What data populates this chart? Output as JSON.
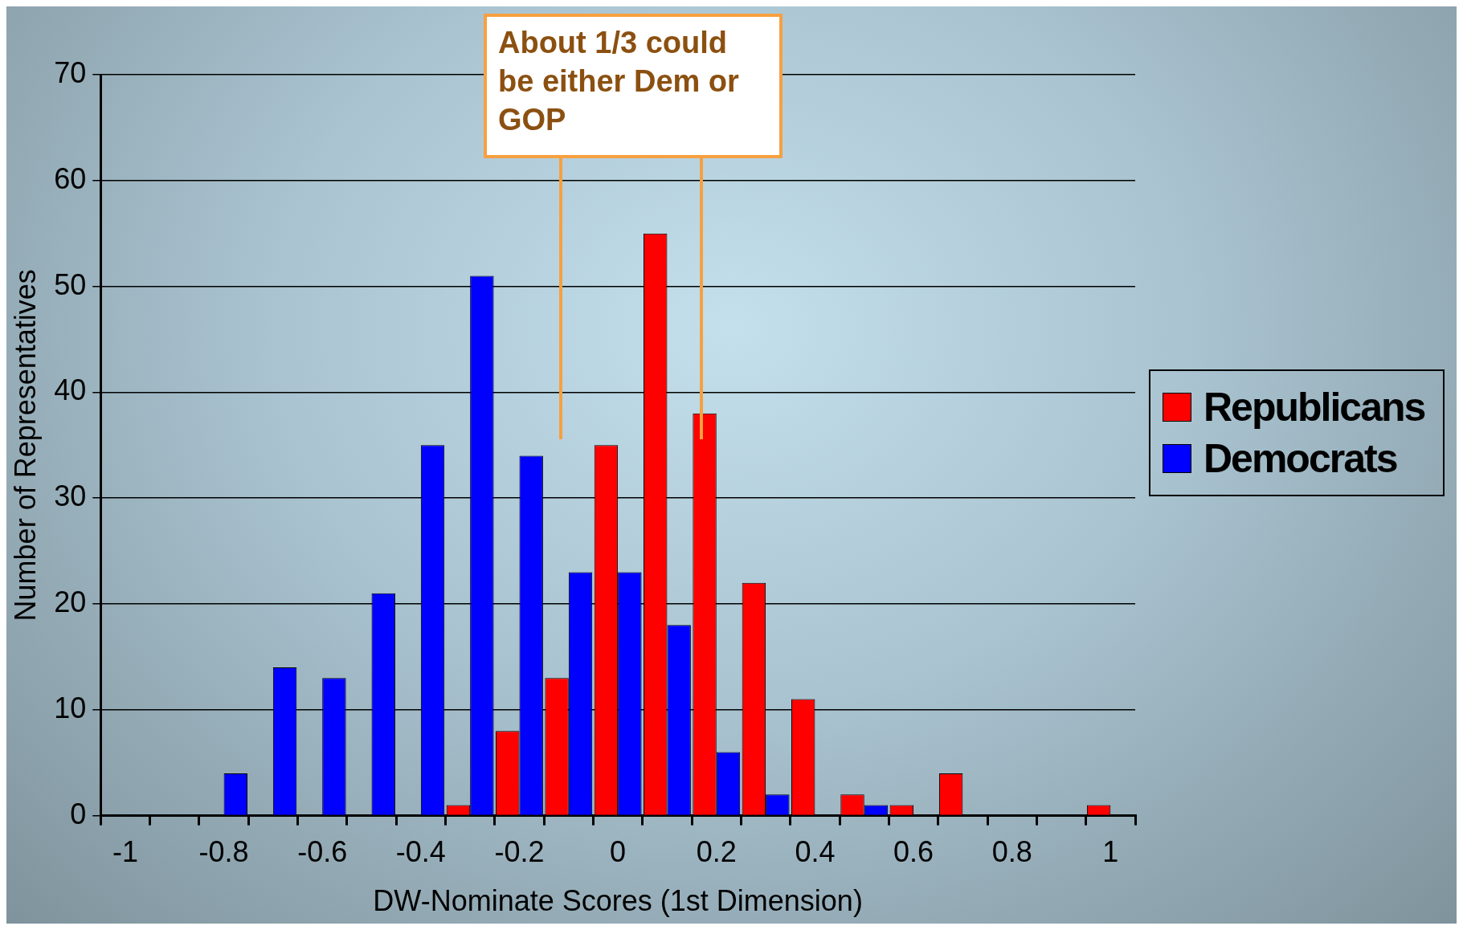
{
  "chart_data": {
    "type": "bar",
    "xlabel": "DW-Nominate Scores (1st Dimension)",
    "ylabel": "Number of Representatives",
    "categories": [
      "-1",
      null,
      "-0.8",
      null,
      "-0.6",
      null,
      "-0.4",
      null,
      "-0.2",
      null,
      "0",
      null,
      "0.2",
      null,
      "0.4",
      null,
      "0.6",
      null,
      "0.8",
      null,
      "1"
    ],
    "series": [
      {
        "name": "Republicans",
        "color": "#ff0000",
        "values": [
          0,
          0,
          0,
          0,
          0,
          0,
          0,
          1,
          8,
          13,
          35,
          55,
          38,
          22,
          11,
          2,
          1,
          4,
          0,
          0,
          1
        ]
      },
      {
        "name": "Democrats",
        "color": "#0000ff",
        "values": [
          0,
          0,
          4,
          14,
          13,
          21,
          35,
          51,
          34,
          23,
          23,
          18,
          6,
          2,
          0,
          1,
          0,
          0,
          0,
          0,
          0
        ]
      }
    ],
    "ylim": [
      0,
      70
    ],
    "yticks": [
      0,
      10,
      20,
      30,
      40,
      50,
      60,
      70
    ],
    "grid": "y",
    "legend": "right",
    "annotations": [
      "About 1/3 could be either Dem or GOP"
    ]
  }
}
